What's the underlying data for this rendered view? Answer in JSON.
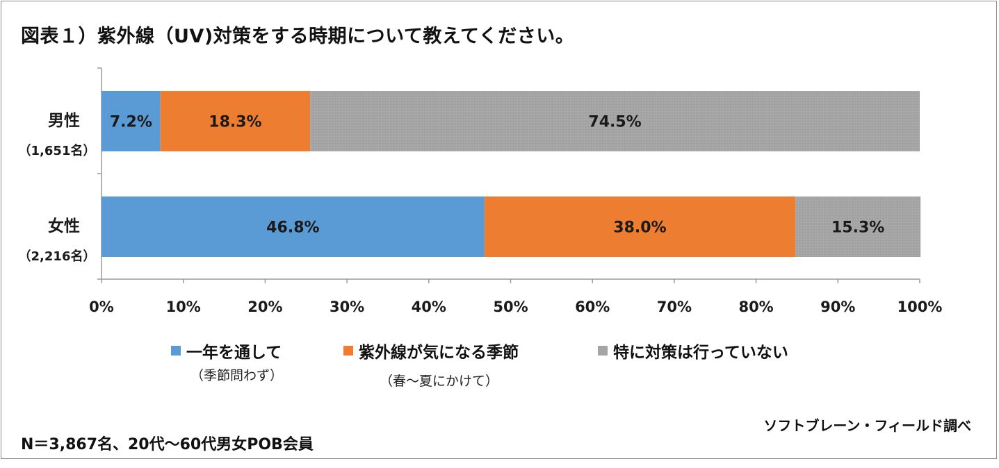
{
  "title": "図表１）紫外線（UV)対策をする時期について教えてください。",
  "chart_data": {
    "type": "bar",
    "orientation": "horizontal",
    "stacked": true,
    "categories": [
      {
        "name": "男性",
        "sub": "（1,651名）"
      },
      {
        "name": "女性",
        "sub": "（2,216名）"
      }
    ],
    "series": [
      {
        "name": "一年を通して",
        "sub": "（季節問わず）",
        "color": "#5b9bd5",
        "values": [
          7.2,
          46.8
        ],
        "labels": [
          "7.2%",
          "46.8%"
        ]
      },
      {
        "name": "紫外線が気になる季節",
        "sub": "（春〜夏にかけて）",
        "color": "#ed7d31",
        "values": [
          18.3,
          38.0
        ],
        "labels": [
          "18.3%",
          "38.0%"
        ]
      },
      {
        "name": "特に対策は行っていない",
        "sub": "",
        "color": "#a5a5a5",
        "values": [
          74.5,
          15.3
        ],
        "labels": [
          "74.5%",
          "15.3%"
        ]
      }
    ],
    "xlim": [
      0,
      100
    ],
    "x_ticks": [
      "0%",
      "10%",
      "20%",
      "30%",
      "40%",
      "50%",
      "60%",
      "70%",
      "80%",
      "90%",
      "100%"
    ],
    "legend_position": "bottom",
    "grid": false
  },
  "source": "ソフトブレーン・フィールド調べ",
  "note": "N＝3,867名、20代〜60代男女POB会員"
}
